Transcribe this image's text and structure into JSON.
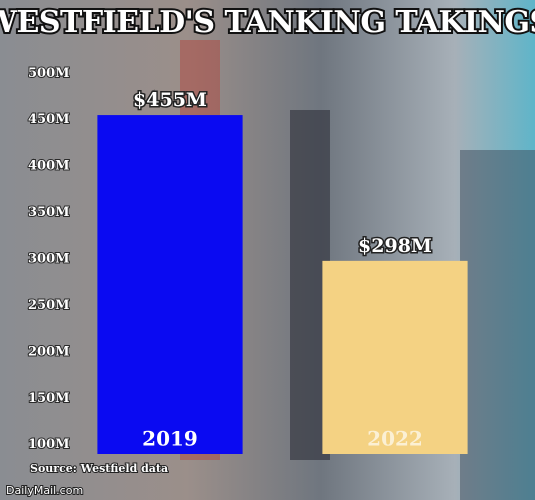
{
  "chart_data": {
    "type": "bar",
    "title": "WESTFIELD'S TANKING TAKINGS",
    "categories": [
      "2019",
      "2022"
    ],
    "values": [
      455,
      298
    ],
    "value_labels": [
      "$455M",
      "$298M"
    ],
    "colors": [
      "#0a0af2",
      "#f4d283"
    ],
    "ylim": [
      90,
      510
    ],
    "yticks": [
      {
        "value": 100,
        "label": "100M"
      },
      {
        "value": 150,
        "label": "150M"
      },
      {
        "value": 200,
        "label": "200M"
      },
      {
        "value": 250,
        "label": "250M"
      },
      {
        "value": 300,
        "label": "300M"
      },
      {
        "value": 350,
        "label": "350M"
      },
      {
        "value": 400,
        "label": "400M"
      },
      {
        "value": 450,
        "label": "450M"
      },
      {
        "value": 500,
        "label": "500M"
      }
    ],
    "grid": false,
    "source": "Source: Westfield data",
    "credit": "DailyMail.com"
  }
}
